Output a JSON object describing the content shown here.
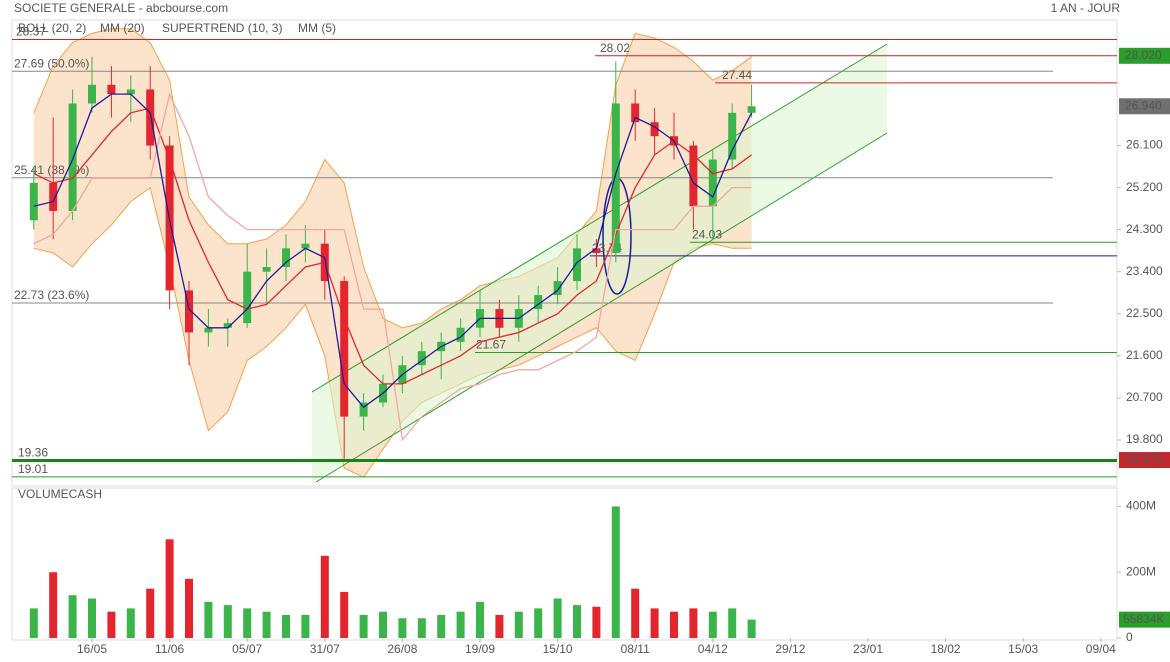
{
  "header": {
    "title": "SOCIETE GENERALE - abcbourse.com",
    "period": "1 AN - JOUR"
  },
  "chart_data": [
    {
      "type": "candlestick",
      "categories": [
        null,
        null,
        null,
        "16/05",
        null,
        null,
        null,
        "11/06",
        null,
        null,
        null,
        "05/07",
        null,
        null,
        null,
        "31/07",
        null,
        null,
        null,
        "26/08",
        null,
        null,
        null,
        "19/09",
        null,
        null,
        null,
        "15/10",
        null,
        null,
        null,
        "08/11",
        null,
        null,
        null,
        "04/12",
        null,
        null,
        null,
        "29/12",
        null,
        null,
        null,
        "23/01",
        null,
        null,
        null,
        "18/02",
        null,
        null,
        null,
        "15/03",
        null,
        null,
        null,
        "09/04"
      ],
      "open": [
        24.5,
        25.3,
        24.7,
        27.0,
        27.4,
        27.2,
        27.3,
        26.1,
        23.0,
        22.1,
        22.2,
        22.3,
        23.4,
        23.5,
        23.9,
        24.0,
        23.2,
        20.3,
        20.6,
        21.0,
        21.4,
        21.7,
        21.9,
        22.2,
        22.6,
        22.2,
        22.6,
        22.9,
        23.2,
        23.9,
        23.8,
        27.0,
        26.6,
        26.3,
        26.1,
        24.8,
        25.8,
        26.8,
        null,
        null,
        null,
        null,
        null,
        null,
        null,
        null,
        null,
        null,
        null,
        null,
        null,
        null,
        null,
        null,
        null,
        null
      ],
      "high": [
        25.6,
        26.7,
        27.3,
        28.0,
        27.8,
        27.6,
        27.8,
        26.3,
        23.2,
        22.6,
        22.4,
        24.0,
        23.9,
        24.2,
        24.4,
        24.3,
        23.3,
        20.8,
        21.2,
        21.6,
        21.9,
        22.1,
        22.4,
        23.0,
        22.8,
        22.9,
        23.1,
        23.5,
        24.2,
        24.1,
        27.9,
        27.3,
        26.9,
        26.8,
        26.2,
        26.0,
        27.0,
        27.4,
        null,
        null,
        null,
        null,
        null,
        null,
        null,
        null,
        null,
        null,
        null,
        null,
        null,
        null,
        null,
        null,
        null,
        null
      ],
      "low": [
        24.3,
        24.1,
        24.5,
        26.8,
        26.7,
        26.6,
        25.8,
        22.6,
        21.4,
        21.8,
        21.8,
        22.2,
        22.7,
        23.2,
        23.6,
        22.8,
        19.4,
        20.0,
        20.5,
        20.8,
        21.2,
        21.1,
        21.7,
        22.0,
        22.0,
        21.9,
        22.3,
        22.7,
        23.0,
        23.5,
        23.6,
        26.2,
        25.9,
        25.8,
        24.3,
        24.1,
        25.6,
        26.7,
        null,
        null,
        null,
        null,
        null,
        null,
        null,
        null,
        null,
        null,
        null,
        null,
        null,
        null,
        null,
        null,
        null,
        null
      ],
      "close": [
        25.3,
        24.7,
        27.0,
        27.4,
        27.2,
        27.3,
        26.1,
        23.0,
        22.1,
        22.2,
        22.3,
        23.4,
        23.5,
        23.9,
        24.0,
        23.2,
        20.3,
        20.6,
        21.0,
        21.4,
        21.7,
        21.9,
        22.2,
        22.6,
        22.2,
        22.6,
        22.9,
        23.2,
        23.9,
        23.8,
        27.0,
        26.6,
        26.3,
        26.1,
        24.8,
        25.8,
        26.8,
        26.94,
        null,
        null,
        null,
        null,
        null,
        null,
        null,
        null,
        null,
        null,
        null,
        null,
        null,
        null,
        null,
        null,
        null,
        null
      ],
      "colors": {
        "up": "#3bb54a",
        "down": "#e3262d"
      },
      "bands": {
        "name": "BOLL (20, 2)",
        "color": "#f0a34a",
        "upper": [
          26.8,
          27.8,
          28.3,
          28.5,
          28.6,
          28.6,
          28.3,
          27.5,
          25.0,
          24.4,
          24.0,
          24.0,
          24.1,
          24.4,
          24.9,
          25.8,
          25.3,
          23.5,
          22.4,
          22.2,
          22.3,
          22.6,
          22.8,
          23.1,
          23.2,
          23.3,
          23.5,
          23.7,
          24.2,
          24.7,
          27.4,
          28.5,
          28.4,
          28.2,
          27.9,
          27.5,
          27.7,
          28.0,
          null,
          null,
          null,
          null,
          null,
          null,
          null,
          null,
          null,
          null,
          null,
          null,
          null,
          null,
          null,
          null,
          null,
          null
        ],
        "lower": [
          23.9,
          23.8,
          23.5,
          24.0,
          24.4,
          24.9,
          25.2,
          23.5,
          21.5,
          20.0,
          20.4,
          21.5,
          21.8,
          22.2,
          22.7,
          21.6,
          19.2,
          19.0,
          19.6,
          20.2,
          20.6,
          20.8,
          21.0,
          21.2,
          21.3,
          21.4,
          21.6,
          21.8,
          22.0,
          22.2,
          21.7,
          21.5,
          22.5,
          23.6,
          23.9,
          24.0,
          23.9,
          23.9,
          null,
          null,
          null,
          null,
          null,
          null,
          null,
          null,
          null,
          null,
          null,
          null,
          null,
          null,
          null,
          null,
          null,
          null
        ]
      },
      "series": [
        {
          "name": "MM (20)",
          "color": "#e3262d",
          "values": [
            25.5,
            25.3,
            25.4,
            25.9,
            26.4,
            26.8,
            26.9,
            25.8,
            24.5,
            23.6,
            22.8,
            22.6,
            22.7,
            23.1,
            23.5,
            23.6,
            22.4,
            21.4,
            21.0,
            21.0,
            21.2,
            21.4,
            21.6,
            21.9,
            22.0,
            22.1,
            22.3,
            22.5,
            22.9,
            23.2,
            24.2,
            25.2,
            25.9,
            26.2,
            25.9,
            25.5,
            25.6,
            25.9,
            null,
            null,
            null,
            null,
            null,
            null,
            null,
            null,
            null,
            null,
            null,
            null,
            null,
            null,
            null,
            null,
            null,
            null
          ]
        },
        {
          "name": "SUPERTREND (10, 3)",
          "color": "#f4a6a0",
          "values": [
            24.0,
            24.2,
            24.7,
            25.4,
            25.4,
            25.4,
            25.4,
            27.2,
            26.3,
            25.0,
            24.6,
            24.3,
            24.3,
            24.3,
            24.3,
            24.3,
            24.3,
            22.6,
            22.6,
            19.8,
            20.3,
            20.6,
            20.9,
            21.0,
            21.2,
            21.3,
            21.3,
            21.5,
            21.7,
            22.0,
            24.3,
            24.3,
            24.3,
            24.3,
            24.8,
            24.8,
            25.2,
            25.2,
            null,
            null,
            null,
            null,
            null,
            null,
            null,
            null,
            null,
            null,
            null,
            null,
            null,
            null,
            null,
            null,
            null,
            null
          ]
        },
        {
          "name": "MM (5)",
          "color": "#1c1c9c",
          "values": [
            24.8,
            24.9,
            25.8,
            26.9,
            27.2,
            27.2,
            26.8,
            24.5,
            22.6,
            22.2,
            22.2,
            22.6,
            23.2,
            23.6,
            23.9,
            23.7,
            21.0,
            20.5,
            20.8,
            21.2,
            21.5,
            21.8,
            22.0,
            22.4,
            22.4,
            22.4,
            22.7,
            23.0,
            23.6,
            23.9,
            25.5,
            26.7,
            26.5,
            26.2,
            25.3,
            25.0,
            26.0,
            26.8,
            null,
            null,
            null,
            null,
            null,
            null,
            null,
            null,
            null,
            null,
            null,
            null,
            null,
            null,
            null,
            null,
            null,
            null
          ]
        }
      ],
      "ylim": [
        18.9,
        29.0
      ],
      "yticks": [
        {
          "value": 19.8,
          "label": "19.800"
        },
        {
          "value": 20.7,
          "label": "20.700"
        },
        {
          "value": 21.6,
          "label": "21.600"
        },
        {
          "value": 22.5,
          "label": "22.500"
        },
        {
          "value": 23.4,
          "label": "23.400"
        },
        {
          "value": 24.3,
          "label": "24.300"
        },
        {
          "value": 25.2,
          "label": "25.200"
        },
        {
          "value": 26.1,
          "label": "26.100"
        }
      ],
      "levels": [
        {
          "value": 28.37,
          "label": "28.37",
          "color": "#d42020"
        },
        {
          "value": 28.02,
          "label": "28.02",
          "color": "#d42020"
        },
        {
          "value": 27.69,
          "label": "27.69 (50.0%)",
          "color": "#888888"
        },
        {
          "value": 27.44,
          "label": "27.44",
          "color": "#d42020"
        },
        {
          "value": 25.41,
          "label": "25.41 (38.2%)",
          "color": "#888888"
        },
        {
          "value": 24.03,
          "label": "24.03",
          "color": "#2a9a2a"
        },
        {
          "value": 23.74,
          "label": "23.74",
          "color": "#1c1c9c"
        },
        {
          "value": 22.73,
          "label": "22.73 (23.6%)",
          "color": "#888888"
        },
        {
          "value": 21.67,
          "label": "21.67",
          "color": "#2a9a2a"
        },
        {
          "value": 19.36,
          "label": "19.36",
          "color": "#17861a"
        },
        {
          "value": 19.01,
          "label": "19.01",
          "color": "#2a9a2a"
        }
      ],
      "price_tags": [
        {
          "value": 28.02,
          "label": "28.020",
          "color": "#2a9d2a"
        },
        {
          "value": 26.94,
          "label": "26.940",
          "color": "#707070"
        },
        {
          "value": 19.37,
          "label": "19.370",
          "color": "#c0282d"
        }
      ]
    },
    {
      "type": "bar",
      "title": "VOLUMECASH",
      "values": [
        90000000,
        200000000,
        130000000,
        120000000,
        80000000,
        90000000,
        150000000,
        300000000,
        180000000,
        110000000,
        100000000,
        90000000,
        80000000,
        70000000,
        70000000,
        250000000,
        140000000,
        70000000,
        80000000,
        60000000,
        60000000,
        70000000,
        80000000,
        110000000,
        70000000,
        80000000,
        90000000,
        120000000,
        100000000,
        95000000,
        400000000,
        150000000,
        90000000,
        80000000,
        90000000,
        80000000,
        90000000,
        55834000,
        null,
        null,
        null,
        null,
        null,
        null,
        null,
        null,
        null,
        null,
        null,
        null,
        null,
        null,
        null,
        null,
        null,
        null
      ],
      "ylim": [
        0,
        450000000
      ],
      "yticks": [
        {
          "value": 0,
          "label": "0"
        },
        {
          "value": 200000000,
          "label": "200M"
        },
        {
          "value": 400000000,
          "label": "400M"
        }
      ],
      "last_tag": {
        "value": 55834000,
        "label": "55834K",
        "color": "#2a9d2a"
      }
    }
  ]
}
